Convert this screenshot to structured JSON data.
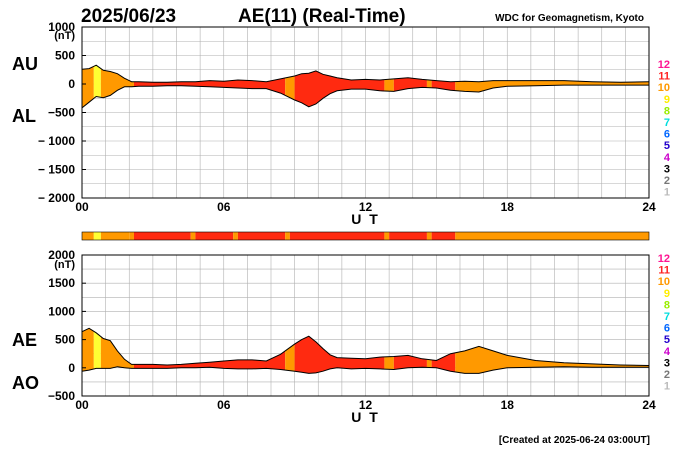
{
  "header": {
    "date": "2025/06/23",
    "title": "AE(11) (Real-Time)",
    "source": "WDC for Geomagnetism, Kyoto",
    "created": "[Created at 2025-06-24 03:00UT]"
  },
  "colors": {
    "level_10": "#ff9900",
    "level_11": "#ff2a10",
    "level_9": "#ffff33",
    "outline": "#000000"
  },
  "chart_data": [
    {
      "type": "area",
      "panel": "top",
      "series_labels": [
        "AU",
        "AL"
      ],
      "y_unit": "(nT)",
      "ylim": [
        -2000,
        1000
      ],
      "yticks": [
        "1000",
        "500",
        "0",
        "−500",
        "− 1000",
        "− 1500",
        "− 2000"
      ],
      "ytick_values": [
        1000,
        500,
        0,
        -500,
        -1000,
        -1500,
        -2000
      ],
      "xlim": [
        0,
        24
      ],
      "xticks": [
        "00",
        "06",
        "12",
        "18",
        "24"
      ],
      "xtick_values": [
        0,
        6,
        12,
        18,
        24
      ],
      "xlabel": "U T",
      "grid": true,
      "x": [
        0,
        0.3,
        0.6,
        0.9,
        1.2,
        1.5,
        1.8,
        2.1,
        2.4,
        3,
        3.6,
        4.2,
        4.8,
        5.4,
        6,
        6.6,
        7.2,
        7.8,
        8.4,
        9,
        9.3,
        9.6,
        9.9,
        10.2,
        10.5,
        10.8,
        11.4,
        12,
        12.6,
        13.2,
        13.8,
        14.4,
        15,
        15.6,
        16.2,
        16.8,
        17.4,
        18,
        19.2,
        20.4,
        21.6,
        22.8,
        24
      ],
      "AU": [
        260,
        270,
        330,
        240,
        220,
        180,
        100,
        40,
        40,
        30,
        30,
        40,
        40,
        60,
        50,
        70,
        60,
        40,
        90,
        140,
        180,
        190,
        230,
        170,
        140,
        110,
        70,
        80,
        70,
        90,
        110,
        80,
        60,
        40,
        50,
        40,
        60,
        60,
        60,
        60,
        40,
        30,
        40
      ],
      "AL": [
        -420,
        -320,
        -220,
        -240,
        -200,
        -110,
        -50,
        -50,
        -40,
        -40,
        -30,
        -30,
        -40,
        -50,
        -60,
        -70,
        -80,
        -80,
        -160,
        -280,
        -330,
        -400,
        -350,
        -250,
        -170,
        -120,
        -90,
        -90,
        -120,
        -130,
        -80,
        -60,
        -70,
        -110,
        -130,
        -140,
        -70,
        -40,
        -30,
        -20,
        -20,
        -20,
        -20
      ],
      "activity_segments": [
        {
          "from": 0,
          "to": 0.5,
          "level": 10
        },
        {
          "from": 0.5,
          "to": 0.8,
          "level": 9
        },
        {
          "from": 0.8,
          "to": 2.2,
          "level": 10
        },
        {
          "from": 2.2,
          "to": 8.6,
          "level": 11
        },
        {
          "from": 8.6,
          "to": 9.0,
          "level": 10
        },
        {
          "from": 9.0,
          "to": 12.8,
          "level": 11
        },
        {
          "from": 12.8,
          "to": 13.2,
          "level": 10
        },
        {
          "from": 13.2,
          "to": 14.6,
          "level": 11
        },
        {
          "from": 14.6,
          "to": 14.8,
          "level": 10
        },
        {
          "from": 14.8,
          "to": 15.8,
          "level": 11
        },
        {
          "from": 15.8,
          "to": 24,
          "level": 10
        }
      ]
    },
    {
      "type": "area",
      "panel": "bottom",
      "series_labels": [
        "AE",
        "AO"
      ],
      "y_unit": "(nT)",
      "ylim": [
        -500,
        2000
      ],
      "yticks": [
        "2000",
        "1500",
        "1000",
        "500",
        "0",
        "−500"
      ],
      "ytick_values": [
        2000,
        1500,
        1000,
        500,
        0,
        -500
      ],
      "xlim": [
        0,
        24
      ],
      "xticks": [
        "00",
        "06",
        "12",
        "18",
        "24"
      ],
      "xtick_values": [
        0,
        6,
        12,
        18,
        24
      ],
      "xlabel": "U T",
      "grid": true,
      "x": [
        0,
        0.3,
        0.6,
        0.9,
        1.2,
        1.5,
        1.8,
        2.1,
        2.4,
        3,
        3.6,
        4.2,
        4.8,
        5.4,
        6,
        6.6,
        7.2,
        7.8,
        8.4,
        9,
        9.3,
        9.6,
        9.9,
        10.2,
        10.5,
        10.8,
        11.4,
        12,
        12.6,
        13.2,
        13.8,
        14.4,
        15,
        15.6,
        16.2,
        16.8,
        17.4,
        18,
        19.2,
        20.4,
        21.6,
        22.8,
        24
      ],
      "AE": [
        640,
        700,
        620,
        520,
        480,
        300,
        150,
        60,
        60,
        60,
        50,
        60,
        80,
        100,
        120,
        140,
        140,
        120,
        240,
        420,
        500,
        560,
        460,
        340,
        230,
        180,
        170,
        160,
        190,
        200,
        220,
        160,
        130,
        250,
        300,
        380,
        300,
        220,
        130,
        90,
        70,
        50,
        40
      ],
      "AO": [
        -60,
        -40,
        -10,
        -10,
        -10,
        20,
        0,
        -10,
        -10,
        -10,
        -10,
        0,
        0,
        10,
        -10,
        -20,
        -20,
        -10,
        -30,
        -60,
        -80,
        -100,
        -90,
        -60,
        -20,
        0,
        -20,
        -10,
        -20,
        -30,
        0,
        10,
        0,
        -60,
        -100,
        -100,
        -40,
        0,
        10,
        20,
        10,
        10,
        10
      ],
      "activity_segments": [
        {
          "from": 0,
          "to": 0.5,
          "level": 10
        },
        {
          "from": 0.5,
          "to": 0.8,
          "level": 9
        },
        {
          "from": 0.8,
          "to": 2.2,
          "level": 10
        },
        {
          "from": 2.2,
          "to": 8.6,
          "level": 11
        },
        {
          "from": 8.6,
          "to": 9.0,
          "level": 10
        },
        {
          "from": 9.0,
          "to": 12.8,
          "level": 11
        },
        {
          "from": 12.8,
          "to": 13.2,
          "level": 10
        },
        {
          "from": 13.2,
          "to": 14.6,
          "level": 11
        },
        {
          "from": 14.6,
          "to": 14.8,
          "level": 10
        },
        {
          "from": 14.8,
          "to": 15.8,
          "level": 11
        },
        {
          "from": 15.8,
          "to": 24,
          "level": 10
        }
      ]
    }
  ],
  "activity_bar": [
    {
      "from": 0,
      "to": 0.5,
      "level": 10
    },
    {
      "from": 0.5,
      "to": 0.8,
      "level": 9
    },
    {
      "from": 0.8,
      "to": 2.0,
      "level": 10
    },
    {
      "from": 2.0,
      "to": 2.2,
      "level": 10
    },
    {
      "from": 2.2,
      "to": 4.6,
      "level": 11
    },
    {
      "from": 4.6,
      "to": 4.8,
      "level": 10
    },
    {
      "from": 4.8,
      "to": 6.4,
      "level": 11
    },
    {
      "from": 6.4,
      "to": 6.6,
      "level": 10
    },
    {
      "from": 6.6,
      "to": 8.6,
      "level": 11
    },
    {
      "from": 8.6,
      "to": 8.8,
      "level": 10
    },
    {
      "from": 8.8,
      "to": 12.8,
      "level": 11
    },
    {
      "from": 12.8,
      "to": 13.0,
      "level": 10
    },
    {
      "from": 13.0,
      "to": 14.6,
      "level": 11
    },
    {
      "from": 14.6,
      "to": 14.8,
      "level": 10
    },
    {
      "from": 14.8,
      "to": 15.8,
      "level": 11
    },
    {
      "from": 15.8,
      "to": 24,
      "level": 10
    }
  ],
  "legend": [
    {
      "label": "12",
      "color": "#ff1493"
    },
    {
      "label": "11",
      "color": "#ff2222"
    },
    {
      "label": "10",
      "color": "#ff9900"
    },
    {
      "label": "9",
      "color": "#ffee00"
    },
    {
      "label": "8",
      "color": "#99ee00"
    },
    {
      "label": "7",
      "color": "#00dddd"
    },
    {
      "label": "6",
      "color": "#0066ff"
    },
    {
      "label": "5",
      "color": "#2200cc"
    },
    {
      "label": "4",
      "color": "#cc00cc"
    },
    {
      "label": "3",
      "color": "#000000"
    },
    {
      "label": "2",
      "color": "#777777"
    },
    {
      "label": "1",
      "color": "#bbbbbb"
    }
  ]
}
